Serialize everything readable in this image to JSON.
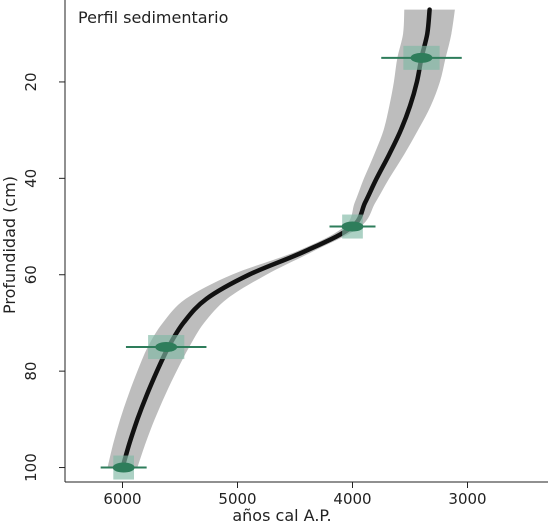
{
  "chart_data": {
    "type": "line",
    "title": "Perfil sedimentario",
    "xlabel": "años cal A.P.",
    "ylabel": "Profundidad (cm)",
    "x_reversed": true,
    "y_reversed": true,
    "xlim": [
      6500,
      2300
    ],
    "ylim": [
      3,
      103
    ],
    "x_ticks": [
      6000,
      5000,
      4000,
      3000
    ],
    "y_ticks": [
      20,
      40,
      60,
      80,
      100
    ],
    "grid": false,
    "colors": {
      "model_line": "#111111",
      "uncertainty_band": "#bdbdbd",
      "date_marker": "#2e7d5b",
      "date_box": "#7fb8a4"
    },
    "age_model": {
      "depth": [
        5,
        10,
        15,
        20,
        25,
        30,
        35,
        40,
        45,
        50,
        55,
        60,
        65,
        70,
        75,
        80,
        85,
        90,
        95,
        100
      ],
      "age": [
        3330,
        3350,
        3400,
        3440,
        3500,
        3580,
        3680,
        3790,
        3890,
        4000,
        4400,
        4900,
        5270,
        5470,
        5600,
        5700,
        5790,
        5870,
        5940,
        6000
      ],
      "band_halfwidth": [
        220,
        210,
        210,
        200,
        180,
        150,
        130,
        110,
        90,
        70,
        70,
        150,
        180,
        180,
        180,
        170,
        160,
        150,
        140,
        130
      ]
    },
    "dates": [
      {
        "depth": 15,
        "age": 3400,
        "error": 350
      },
      {
        "depth": 50,
        "age": 4000,
        "error": 200
      },
      {
        "depth": 75,
        "age": 5620,
        "error": 350
      },
      {
        "depth": 100,
        "age": 5990,
        "error": 200
      }
    ]
  }
}
